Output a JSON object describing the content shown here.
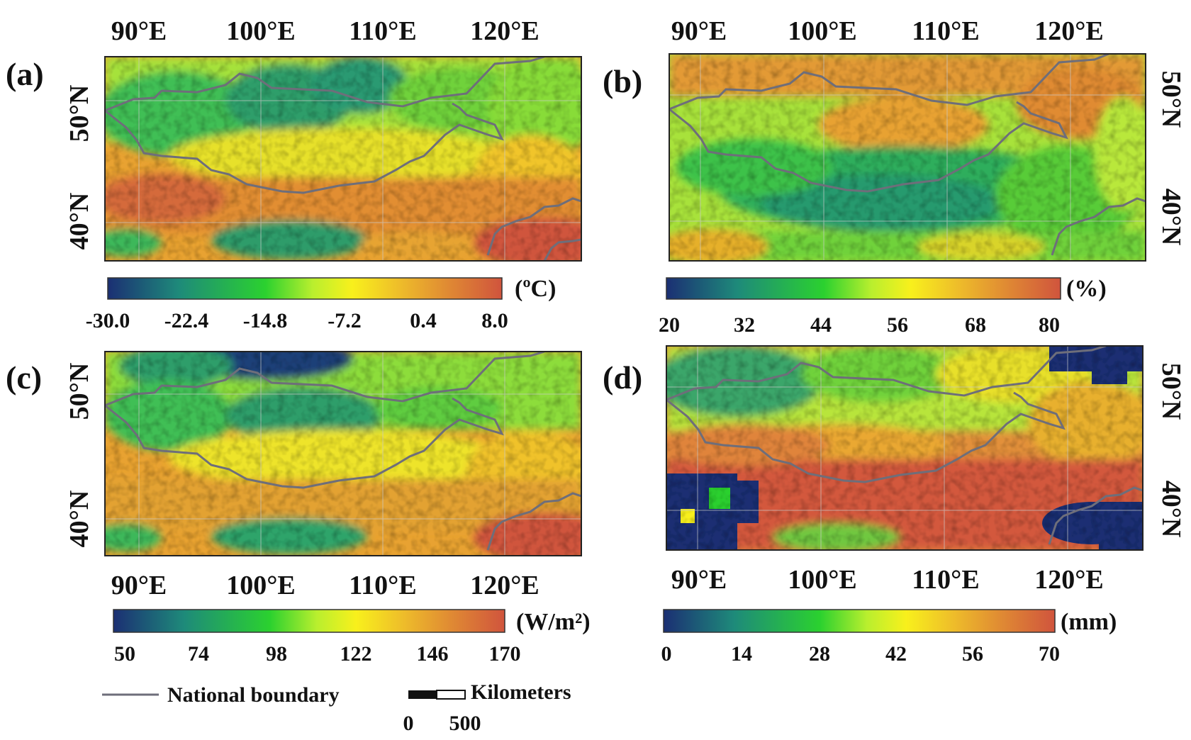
{
  "figure": {
    "panels": [
      {
        "letter": "(a)",
        "lon_labels": [
          "90°E",
          "100°E",
          "110°E",
          "120°E"
        ],
        "lat_labels": [
          "50°N",
          "40°N"
        ],
        "colorbar": {
          "unit": "(ºC)",
          "ticks": [
            "-30.0",
            "-22.4",
            "-14.8",
            "-7.2",
            "0.4",
            "8.0"
          ]
        }
      },
      {
        "letter": "(b)",
        "lon_labels": [
          "90°E",
          "100°E",
          "110°E",
          "120°E"
        ],
        "lat_labels": [
          "50°N",
          "40°N"
        ],
        "colorbar": {
          "unit": "(%)",
          "ticks": [
            "20",
            "32",
            "44",
            "56",
            "68",
            "80"
          ]
        }
      },
      {
        "letter": "(c)",
        "lon_labels": [
          "90°E",
          "100°E",
          "110°E",
          "120°E"
        ],
        "lat_labels": [
          "50°N",
          "40°N"
        ],
        "colorbar": {
          "unit": "(W/m²)",
          "ticks": [
            "50",
            "74",
            "98",
            "122",
            "146",
            "170"
          ]
        }
      },
      {
        "letter": "(d)",
        "lon_labels": [
          "90°E",
          "100°E",
          "110°E",
          "120°E"
        ],
        "lat_labels": [
          "50°N",
          "40°N"
        ],
        "colorbar": {
          "unit": "(mm)",
          "ticks": [
            "0",
            "14",
            "28",
            "42",
            "56",
            "70"
          ]
        }
      }
    ],
    "legend": {
      "boundary_label": "National boundary",
      "scale_label": "Kilometers",
      "scale_ticks": [
        "0",
        "500"
      ]
    },
    "colors": {
      "boundary": "#6e6e7a",
      "ramp": [
        "#1b2f73",
        "#1e8a7a",
        "#2bd12f",
        "#b9ef2e",
        "#f8f01c",
        "#eebd2a",
        "#e08b33",
        "#d0543d"
      ]
    }
  }
}
